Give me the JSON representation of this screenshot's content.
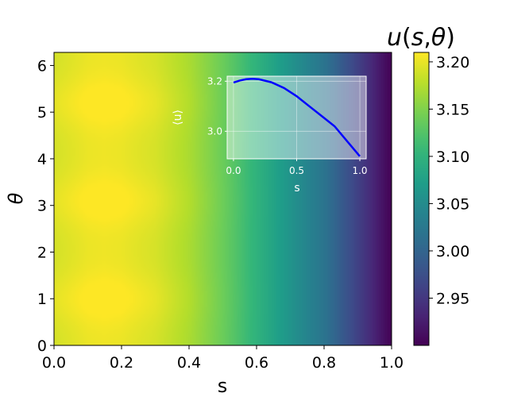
{
  "chart_data": [
    {
      "type": "heatmap",
      "title": "u(s,θ)",
      "title_parts": {
        "u": "u",
        "open": "(",
        "s": "s",
        "comma": ",",
        "theta": "θ",
        "close": ")"
      },
      "xlabel": "s",
      "ylabel": "θ",
      "xlim": [
        0.0,
        1.0
      ],
      "ylim": [
        0.0,
        6.28
      ],
      "x_ticks": [
        0.0,
        0.2,
        0.4,
        0.6,
        0.8,
        1.0
      ],
      "x_tick_labels": [
        "0.0",
        "0.2",
        "0.4",
        "0.6",
        "0.8",
        "1.0"
      ],
      "y_ticks": [
        0,
        1,
        2,
        3,
        4,
        5,
        6
      ],
      "y_tick_labels": [
        "0",
        "1",
        "2",
        "3",
        "4",
        "5",
        "6"
      ],
      "colormap": "viridis",
      "vmin": 2.9,
      "vmax": 3.21,
      "grid": false,
      "colorbar": {
        "ticks": [
          2.95,
          3.0,
          3.05,
          3.1,
          3.15,
          3.2
        ],
        "tick_labels": [
          "2.95",
          "3.00",
          "3.05",
          "3.10",
          "3.15",
          "3.20"
        ]
      },
      "s_profile": {
        "s": [
          0.0,
          0.1,
          0.15,
          0.2,
          0.3,
          0.4,
          0.5,
          0.6,
          0.7,
          0.8,
          0.9,
          1.0
        ],
        "u": [
          3.195,
          3.208,
          3.21,
          3.208,
          3.196,
          3.173,
          3.14,
          3.1,
          3.06,
          3.02,
          2.96,
          2.9
        ]
      },
      "theta_peaks": [
        1.0,
        3.1,
        5.2
      ]
    },
    {
      "type": "line",
      "xlabel": "s",
      "ylabel": "⟨u⟩",
      "xlim": [
        -0.05,
        1.05
      ],
      "ylim": [
        2.89,
        3.22
      ],
      "x_ticks": [
        0.0,
        0.5,
        1.0
      ],
      "x_tick_labels": [
        "0.0",
        "0.5",
        "1.0"
      ],
      "y_ticks": [
        3.0,
        3.2
      ],
      "y_tick_labels": [
        "3.0",
        "3.2"
      ],
      "grid": true,
      "series": [
        {
          "color": "#0000ff",
          "x": [
            0.0,
            0.05,
            0.1,
            0.15,
            0.2,
            0.3,
            0.4,
            0.5,
            0.6,
            0.7,
            0.8,
            0.9,
            1.0
          ],
          "y": [
            3.195,
            3.203,
            3.208,
            3.21,
            3.208,
            3.196,
            3.173,
            3.14,
            3.1,
            3.06,
            3.02,
            2.96,
            2.9
          ]
        }
      ]
    }
  ]
}
